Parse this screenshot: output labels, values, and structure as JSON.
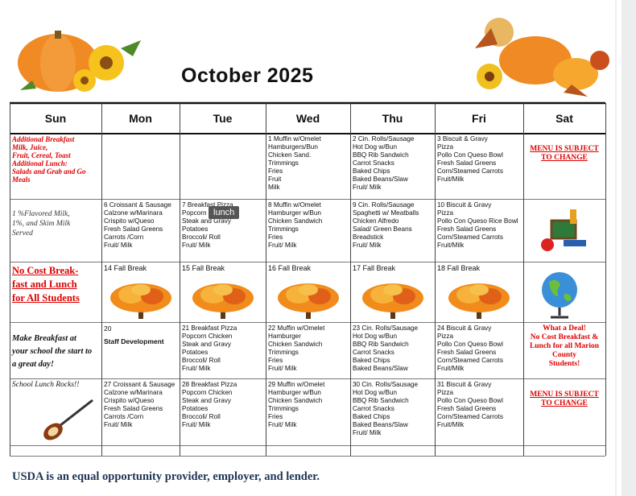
{
  "title": "October 2025",
  "days": [
    "Sun",
    "Mon",
    "Tue",
    "Wed",
    "Thu",
    "Fri",
    "Sat"
  ],
  "weeks": [
    {
      "cells": [
        {
          "lines": [
            "Additional Breakfast",
            "Milk, Juice,",
            "Fruit, Cereal, Toast",
            "Additional Lunch:",
            "Salads and Grab and Go",
            "Meals"
          ]
        },
        {
          "lines": []
        },
        {
          "lines": []
        },
        {
          "lines": [
            "1 Muffin w/Omelet",
            "Hamburgers/Bun",
            "Chicken Sand.",
            "Trimmings",
            "Fries",
            "Fruit",
            "Milk"
          ]
        },
        {
          "lines": [
            "2 Cin. Rolls/Sausage",
            "Hot Dog w/Bun",
            "BBQ Rib Sandwich",
            "Carrot Snacks",
            "Baked Chips",
            "Baked Beans/Slaw",
            "Fruit/ Milk"
          ]
        },
        {
          "lines": [
            "3 Biscuit & Gravy",
            "Pizza",
            "Pollo Con Queso Bowl",
            "Fresh Salad Greens",
            "Corn/Steamed Carrots",
            "Fruit/Milk"
          ]
        },
        {
          "lines": [
            "MENU IS SUBJECT",
            "TO CHANGE"
          ]
        }
      ]
    },
    {
      "cells": [
        {
          "lines": [
            "1 %Flavored Milk,",
            "1%, and Skim Milk",
            "Served"
          ]
        },
        {
          "lines": [
            "6 Croissant &  Sausage",
            "Calzone w/Marinara",
            "Crispito w/Queso",
            "Fresh Salad Greens",
            "Carrots /Corn",
            "Fruit/ Milk"
          ]
        },
        {
          "lines": [
            "7 Breakfast Pizza",
            "Popcorn Chicken",
            "Steak and Gravy",
            "Potatoes",
            "Broccoli/ Roll",
            "Fruit/ Milk"
          ]
        },
        {
          "lines": [
            "8 Muffin w/Omelet",
            "Hamburger w/Bun",
            "Chicken Sandwich",
            "Trimmings",
            "Fries",
            "Fruit/ Milk"
          ]
        },
        {
          "lines": [
            "9 Cin. Rolls/Sausage",
            "Spaghetti  w/ Meatballs",
            "Chicken Alfredo",
            "Salad/ Green Beans",
            "Breadstick",
            "Fruit/ Milk"
          ]
        },
        {
          "lines": [
            "10 Biscuit & Gravy",
            "Pizza",
            "Pollo Con Queso Rice Bowl",
            "Fresh Salad Greens",
            "Corn/Steamed Carrots",
            "Fruit/Milk"
          ]
        },
        {
          "lines": []
        }
      ]
    },
    {
      "cells": [
        {
          "lines": [
            "No Cost  Break-",
            "fast  and Lunch",
            "for All Students"
          ]
        },
        {
          "lines": [
            "14  Fall Break"
          ]
        },
        {
          "lines": [
            "15  Fall Break"
          ]
        },
        {
          "lines": [
            "16  Fall Break"
          ]
        },
        {
          "lines": [
            "17  Fall Break"
          ]
        },
        {
          "lines": [
            "18  Fall Break"
          ]
        },
        {
          "lines": []
        }
      ]
    },
    {
      "cells": [
        {
          "lines": [
            "Make Breakfast at",
            "your school the start to",
            "a great day!"
          ]
        },
        {
          "lines": [
            "20",
            "Staff Development"
          ]
        },
        {
          "lines": [
            "21 Breakfast Pizza",
            "Popcorn Chicken",
            "Steak and Gravy",
            "Potatoes",
            "Broccoli/ Roll",
            "Fruit/ Milk"
          ]
        },
        {
          "lines": [
            "22 Muffin w/Omelet",
            "Hamburger",
            "Chicken Sandwich",
            "Trimmings",
            "Fries",
            "Fruit/ Milk"
          ]
        },
        {
          "lines": [
            "23 Cin. Rolls/Sausage",
            "Hot Dog w/Bun",
            "BBQ Rib Sandwich",
            "Carrot Snacks",
            "Baked Chips",
            "Baked Beans/Slaw"
          ]
        },
        {
          "lines": [
            "24 Biscuit & Gravy",
            "Pizza",
            "Pollo Con Queso Bowl",
            "Fresh Salad Greens",
            "Corn/Steamed Carrots",
            "Fruit/Milk"
          ]
        },
        {
          "lines": [
            "What a Deal!",
            "No Cost Breakfast &",
            "Lunch for all Marion",
            "County",
            "Students!"
          ]
        }
      ]
    },
    {
      "cells": [
        {
          "lines": [
            "School Lunch Rocks!!"
          ]
        },
        {
          "lines": [
            "27 Croissant &  Sausage",
            "Calzone w/Marinara",
            "Crispito w/Queso",
            "Fresh Salad Greens",
            "Carrots /Corn",
            "Fruit/ Milk"
          ]
        },
        {
          "lines": [
            "28 Breakfast Pizza",
            "Popcorn Chicken",
            "Steak and Gravy",
            "Potatoes",
            "Broccoli/ Roll",
            "Fruit/ Milk"
          ]
        },
        {
          "lines": [
            "29 Muffin w/Omelet",
            "Hamburger w/Bun",
            "Chicken Sandwich",
            "Trimmings",
            "Fries",
            "Fruit/ Milk"
          ]
        },
        {
          "lines": [
            "30 Cin. Rolls/Sausage",
            "Hot Dog w/Bun",
            "BBQ Rib Sandwich",
            "Carrot Snacks",
            "Baked Chips",
            "Baked Beans/Slaw",
            "Fruit/ Milk"
          ]
        },
        {
          "lines": [
            "31 Biscuit & Gravy",
            "Pizza",
            "Pollo Con Queso Bowl",
            "Fresh Salad Greens",
            "Corn/Steamed Carrots",
            "Fruit/Milk"
          ]
        },
        {
          "lines": [
            "MENU IS SUBJECT",
            "TO CHANGE"
          ]
        }
      ]
    }
  ],
  "tooltip": "lunch",
  "footer": "USDA is an equal opportunity provider, employer, and lender."
}
